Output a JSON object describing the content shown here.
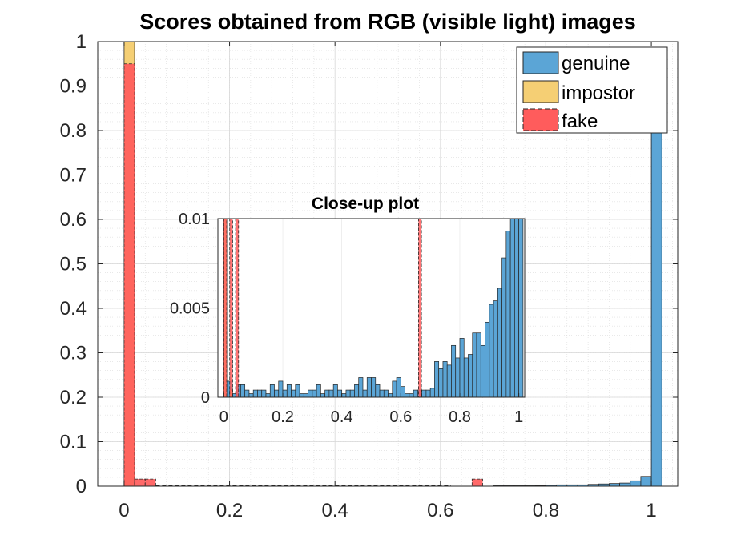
{
  "chart_data": [
    {
      "type": "histogram",
      "title": "Scores obtained from RGB (visible light) images",
      "xlim": [
        -0.05,
        1.05
      ],
      "ylim": [
        0,
        1
      ],
      "x_ticks": [
        "0",
        "0.2",
        "0.4",
        "0.6",
        "0.8",
        "1"
      ],
      "y_ticks": [
        "0",
        "0.1",
        "0.2",
        "0.3",
        "0.4",
        "0.5",
        "0.6",
        "0.7",
        "0.8",
        "0.9",
        "1"
      ],
      "grid": "on (major and minor, dotted)",
      "legend_position": "top-right",
      "legend": [
        "genuine",
        "impostor",
        "fake"
      ],
      "bin_width": 0.02,
      "series": [
        {
          "name": "genuine",
          "color": "#5BA5D6",
          "bins": [
            {
              "x0": 0.0,
              "v": 0.0
            },
            {
              "x0": 0.7,
              "v": 0.001
            },
            {
              "x0": 0.72,
              "v": 0.001
            },
            {
              "x0": 0.74,
              "v": 0.001
            },
            {
              "x0": 0.76,
              "v": 0.001
            },
            {
              "x0": 0.78,
              "v": 0.0015
            },
            {
              "x0": 0.8,
              "v": 0.002
            },
            {
              "x0": 0.82,
              "v": 0.003
            },
            {
              "x0": 0.84,
              "v": 0.003
            },
            {
              "x0": 0.86,
              "v": 0.003
            },
            {
              "x0": 0.88,
              "v": 0.004
            },
            {
              "x0": 0.9,
              "v": 0.005
            },
            {
              "x0": 0.92,
              "v": 0.006
            },
            {
              "x0": 0.94,
              "v": 0.007
            },
            {
              "x0": 0.96,
              "v": 0.012
            },
            {
              "x0": 0.98,
              "v": 0.022
            },
            {
              "x0": 1.0,
              "v": 0.84
            }
          ]
        },
        {
          "name": "impostor",
          "color": "#F5CF74",
          "bins": [
            {
              "x0": 0.0,
              "v": 1.0
            }
          ]
        },
        {
          "name": "fake",
          "color": "#FF5C5C",
          "bins": [
            {
              "x0": 0.0,
              "v": 0.95
            },
            {
              "x0": 0.02,
              "v": 0.016
            },
            {
              "x0": 0.04,
              "v": 0.016
            },
            {
              "x0": 0.66,
              "v": 0.016
            }
          ]
        }
      ]
    },
    {
      "type": "histogram",
      "title": "Close-up plot",
      "xlim": [
        -0.02,
        1.02
      ],
      "ylim": [
        0,
        0.01
      ],
      "x_ticks": [
        "0",
        "0.2",
        "0.4",
        "0.6",
        "0.8",
        "1"
      ],
      "y_ticks": [
        "0",
        "0.005",
        "0.01"
      ],
      "bin_width": 0.02,
      "series": [
        {
          "name": "genuine",
          "color": "#5BA5D6",
          "bins_x0_start": 0.0,
          "values": [
            0.0009,
            0.0009,
            0.0002,
            0.0007,
            0.0007,
            0.0004,
            0.0002,
            0.0004,
            0.0004,
            0.0004,
            0.0002,
            0.0007,
            0.0004,
            0.0009,
            0.0004,
            0.0007,
            0.0004,
            0.0007,
            0.0002,
            0.0002,
            0.0004,
            0.0004,
            0.0007,
            0.0002,
            0.0004,
            0.0004,
            0.0007,
            0.0004,
            0.0002,
            0.0004,
            0.0004,
            0.0007,
            0.0011,
            0.0004,
            0.0011,
            0.0011,
            0.0007,
            0.0004,
            0.0004,
            0.0002,
            0.0009,
            0.0011,
            0.0006,
            0.0002,
            0.0002,
            0.0004,
            0.0004,
            0.0004,
            0.0004,
            0.0005,
            0.002,
            0.0016,
            0.002,
            0.0018,
            0.0029,
            0.0022,
            0.0033,
            0.0022,
            0.0024,
            0.0036,
            0.0036,
            0.0029,
            0.0042,
            0.0052,
            0.0054,
            0.0061,
            0.0078,
            0.0093,
            0.01,
            0.01,
            0.01
          ]
        },
        {
          "name": "impostor",
          "color": "#F5CF74",
          "bins": [
            {
              "x0": 0.0,
              "v": 0.01
            },
            {
              "x0": 0.02,
              "v": 0.0004
            }
          ]
        },
        {
          "name": "fake",
          "color": "#FF5C5C",
          "bins": [
            {
              "x0": 0.0,
              "v": 0.01
            },
            {
              "x0": 0.02,
              "v": 0.01
            },
            {
              "x0": 0.04,
              "v": 0.01
            },
            {
              "x0": 0.66,
              "v": 0.01
            }
          ]
        }
      ]
    }
  ]
}
